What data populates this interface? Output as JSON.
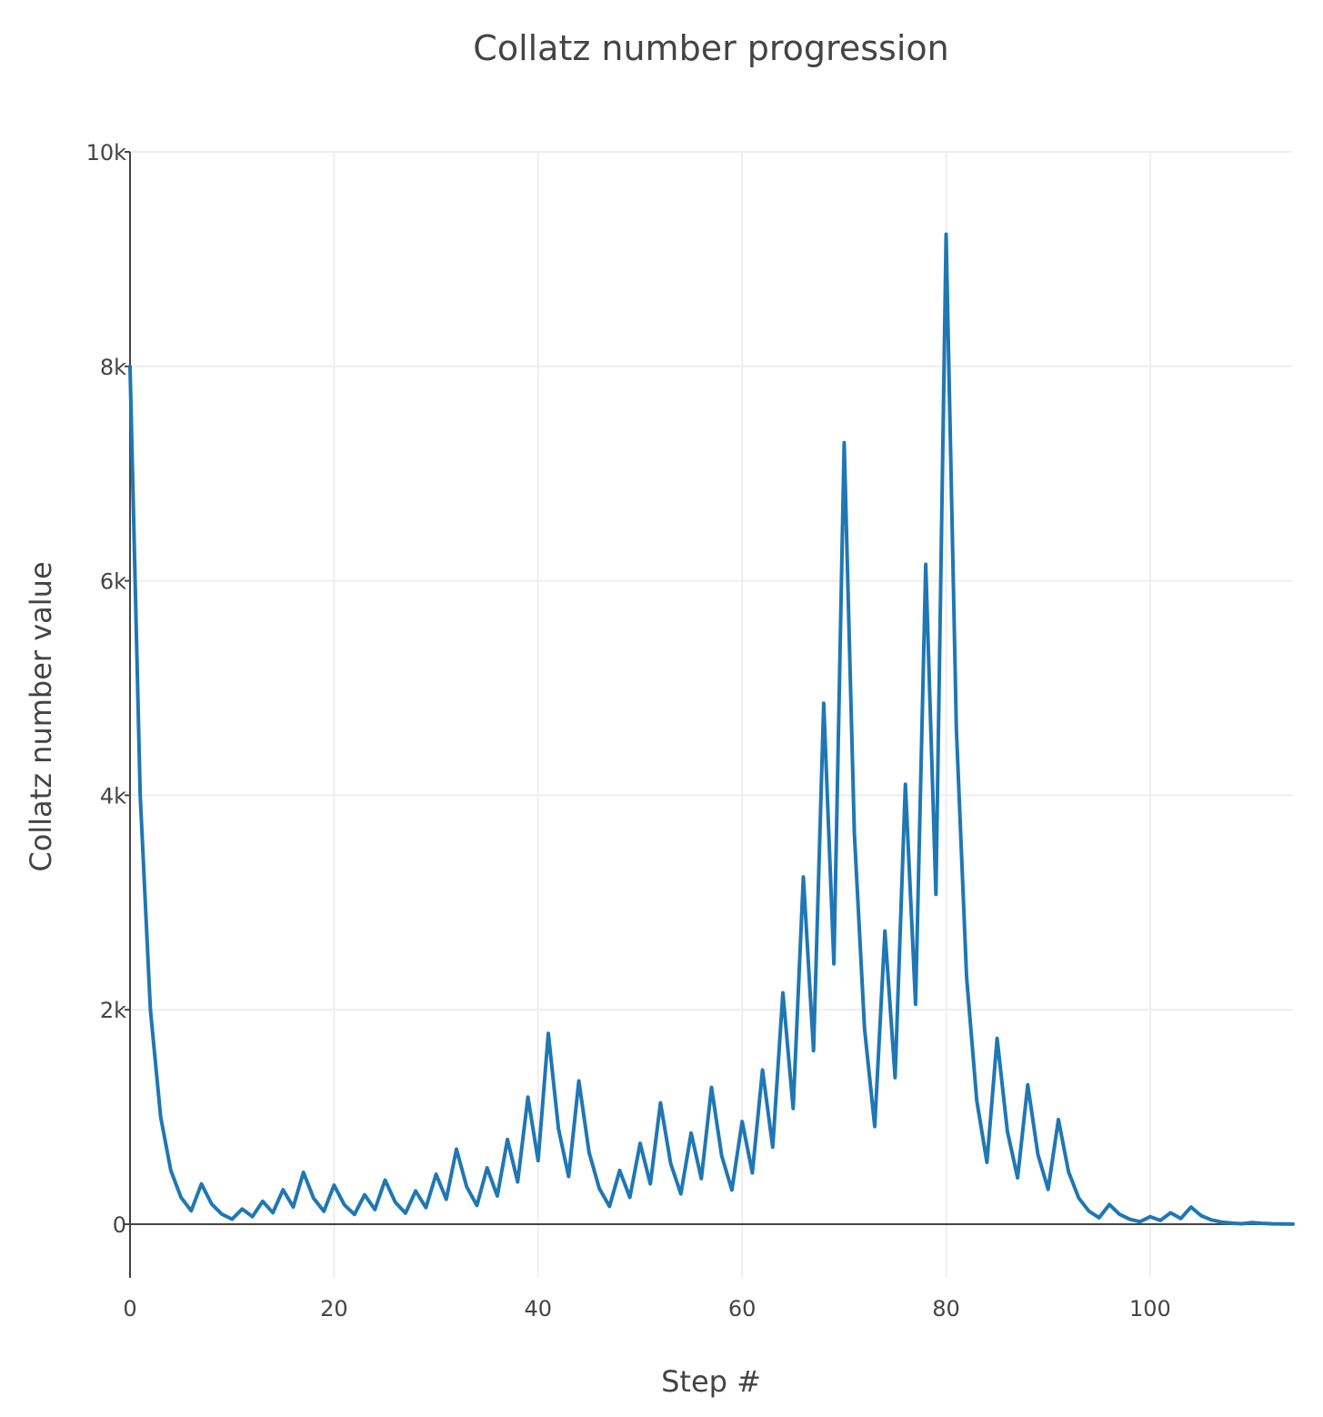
{
  "chart_data": {
    "type": "line",
    "title": "Collatz number progression",
    "xlabel": "Step #",
    "ylabel": "Collatz number value",
    "xlim": [
      0,
      114
    ],
    "ylim": [
      -500,
      10000
    ],
    "x_ticks": [
      {
        "value": 0,
        "label": "0"
      },
      {
        "value": 20,
        "label": "20"
      },
      {
        "value": 40,
        "label": "40"
      },
      {
        "value": 60,
        "label": "60"
      },
      {
        "value": 80,
        "label": "80"
      },
      {
        "value": 100,
        "label": "100"
      }
    ],
    "y_ticks": [
      {
        "value": 0,
        "label": "0"
      },
      {
        "value": 2000,
        "label": "2k"
      },
      {
        "value": 4000,
        "label": "4k"
      },
      {
        "value": 6000,
        "label": "6k"
      },
      {
        "value": 8000,
        "label": "8k"
      },
      {
        "value": 10000,
        "label": "10k"
      }
    ],
    "grid": true,
    "legend": "none",
    "series": [
      {
        "color": "#1f77b4",
        "x": [
          0,
          1,
          2,
          3,
          4,
          5,
          6,
          7,
          8,
          9,
          10,
          11,
          12,
          13,
          14,
          15,
          16,
          17,
          18,
          19,
          20,
          21,
          22,
          23,
          24,
          25,
          26,
          27,
          28,
          29,
          30,
          31,
          32,
          33,
          34,
          35,
          36,
          37,
          38,
          39,
          40,
          41,
          42,
          43,
          44,
          45,
          46,
          47,
          48,
          49,
          50,
          51,
          52,
          53,
          54,
          55,
          56,
          57,
          58,
          59,
          60,
          61,
          62,
          63,
          64,
          65,
          66,
          67,
          68,
          69,
          70,
          71,
          72,
          73,
          74,
          75,
          76,
          77,
          78,
          79,
          80,
          81,
          82,
          83,
          84,
          85,
          86,
          87,
          88,
          89,
          90,
          91,
          92,
          93,
          94,
          95,
          96,
          97,
          98,
          99,
          100,
          101,
          102,
          103,
          104,
          105,
          106,
          107,
          108,
          109,
          110,
          111,
          112,
          113,
          114
        ],
        "values": [
          8000,
          4000,
          2000,
          1000,
          500,
          250,
          125,
          376,
          188,
          94,
          47,
          142,
          71,
          214,
          107,
          322,
          161,
          484,
          242,
          121,
          364,
          182,
          91,
          274,
          137,
          412,
          206,
          103,
          310,
          155,
          466,
          233,
          700,
          350,
          175,
          526,
          263,
          790,
          395,
          1186,
          593,
          1780,
          890,
          445,
          1336,
          668,
          334,
          167,
          502,
          251,
          754,
          377,
          1132,
          566,
          283,
          850,
          425,
          1276,
          638,
          319,
          958,
          479,
          1438,
          719,
          2158,
          1079,
          3238,
          1619,
          4858,
          2429,
          7288,
          3644,
          1822,
          911,
          2734,
          1367,
          4102,
          2051,
          6154,
          3077,
          9232,
          4616,
          2308,
          1154,
          577,
          1732,
          866,
          433,
          1300,
          650,
          325,
          976,
          488,
          244,
          122,
          61,
          184,
          92,
          46,
          23,
          70,
          35,
          106,
          53,
          160,
          80,
          40,
          20,
          10,
          5,
          16,
          8,
          4,
          2,
          1
        ]
      }
    ]
  }
}
